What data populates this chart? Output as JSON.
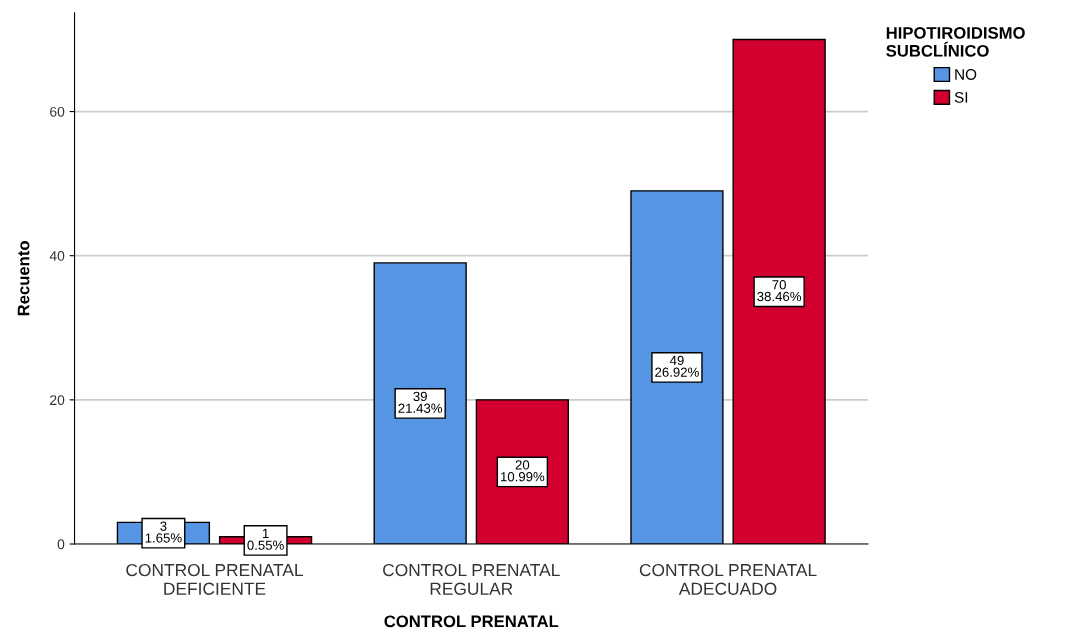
{
  "chart_data": {
    "type": "bar",
    "xlabel": "CONTROL PRENATAL",
    "ylabel": "Recuento",
    "legend_title": "HIPOTIROIDISMO\nSUBCLÍNICO",
    "categories": [
      "CONTROL PRENATAL\nDEFICIENTE",
      "CONTROL PRENATAL\nREGULAR",
      "CONTROL PRENATAL\nADECUADO"
    ],
    "series": [
      {
        "name": "NO",
        "color": "#5595e3",
        "values": [
          3,
          39,
          49
        ],
        "value_labels": [
          "3\n1.65%",
          "39\n21.43%",
          "49\n26.92%"
        ]
      },
      {
        "name": "SI",
        "color": "#d3002f",
        "values": [
          1,
          20,
          70
        ],
        "value_labels": [
          "1\n0.55%",
          "20\n10.99%",
          "70\n38.46%"
        ]
      }
    ],
    "ylim": [
      0,
      73.7
    ],
    "yticks": [
      0,
      20,
      40,
      60
    ],
    "grid": "y",
    "legend": "top right"
  }
}
